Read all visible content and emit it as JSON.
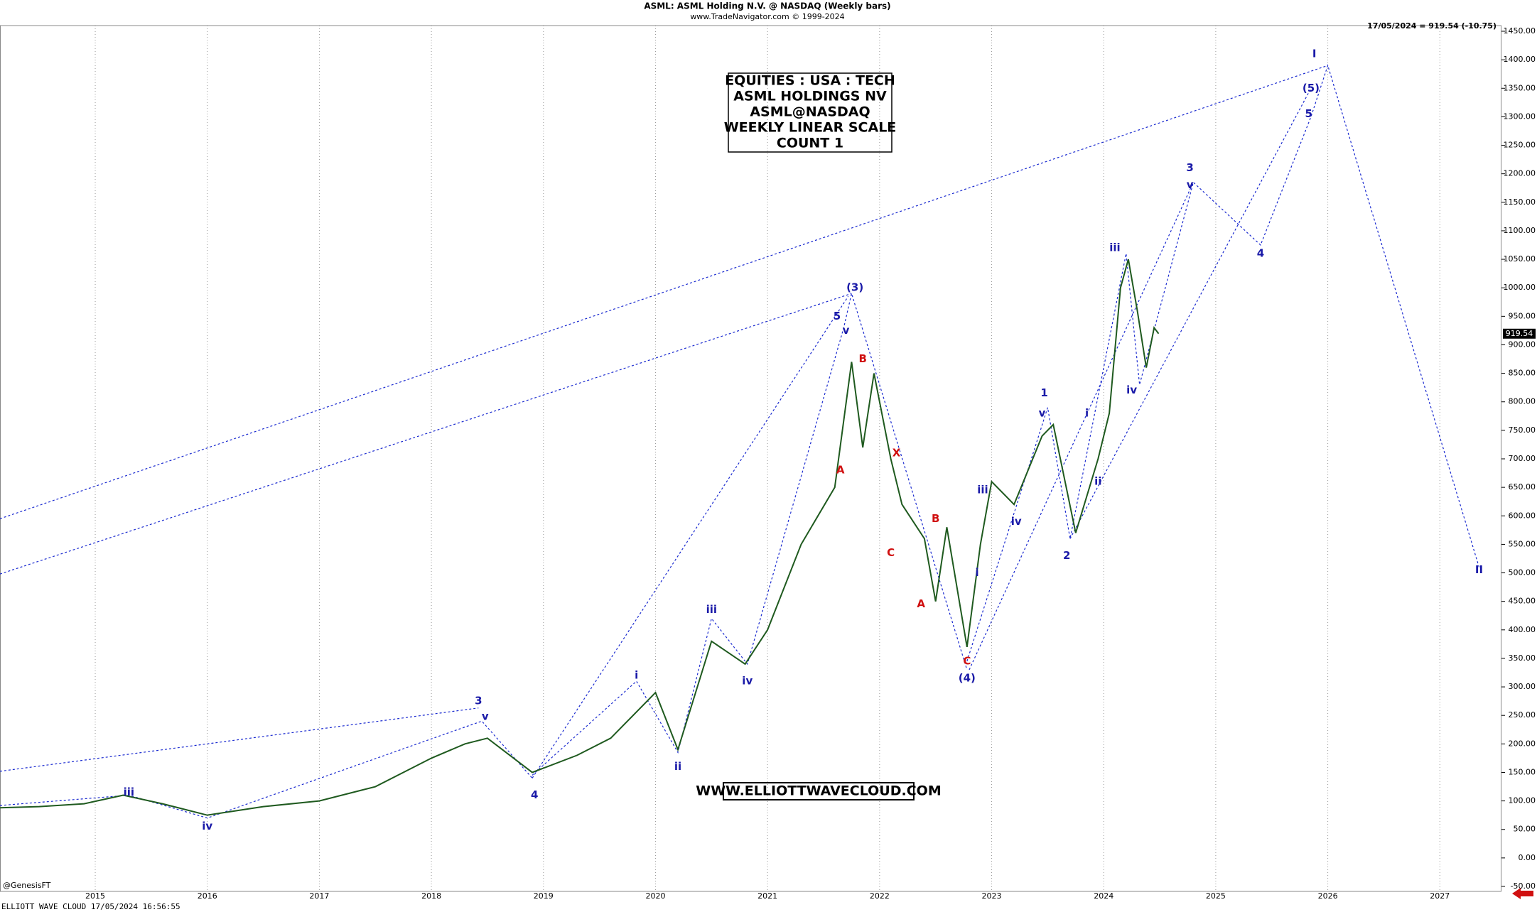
{
  "chart_data": {
    "type": "line",
    "title": "ASML:  ASML Holding N.V. @ NASDAQ  (Weekly bars)",
    "subtitle": "www.TradeNavigator.com © 1999-2024",
    "last_quote": "17/05/2024 = 919.54 (-10.75)",
    "last_price": 919.54,
    "last_price_label": "919.54",
    "info_box": [
      "EQUITIES : USA : TECH",
      "ASML HOLDINGS NV",
      "ASML@NASDAQ",
      "WEEKLY LINEAR SCALE",
      "COUNT 1"
    ],
    "website": "WWW.ELLIOTTWAVECLOUD.COM",
    "footer": "ELLIOTT WAVE CLOUD   17/05/2024 16:56:55",
    "credit": "@GenesisFT",
    "xlim": [
      2014.15,
      2027.55
    ],
    "xticks": [
      2015,
      2016,
      2017,
      2018,
      2019,
      2020,
      2021,
      2022,
      2023,
      2024,
      2025,
      2026,
      2027
    ],
    "ylim": [
      -50,
      1450
    ],
    "yticks": [
      {
        "value": -50,
        "label": "-50.00"
      },
      {
        "value": 0,
        "label": "0.00"
      },
      {
        "value": 50,
        "label": "50.00"
      },
      {
        "value": 100,
        "label": "100.00"
      },
      {
        "value": 150,
        "label": "150.00"
      },
      {
        "value": 200,
        "label": "200.00"
      },
      {
        "value": 250,
        "label": "250.00"
      },
      {
        "value": 300,
        "label": "300.00"
      },
      {
        "value": 350,
        "label": "350.00"
      },
      {
        "value": 400,
        "label": "400.00"
      },
      {
        "value": 450,
        "label": "450.00"
      },
      {
        "value": 500,
        "label": "500.00"
      },
      {
        "value": 550,
        "label": "550.00"
      },
      {
        "value": 600,
        "label": "600.00"
      },
      {
        "value": 650,
        "label": "650.00"
      },
      {
        "value": 700,
        "label": "700.00"
      },
      {
        "value": 750,
        "label": "750.00"
      },
      {
        "value": 800,
        "label": "800.00"
      },
      {
        "value": 850,
        "label": "850.00"
      },
      {
        "value": 900,
        "label": "900.00"
      },
      {
        "value": 950,
        "label": "950.00"
      },
      {
        "value": 1000,
        "label": "1000.00"
      },
      {
        "value": 1050,
        "label": "1050.00"
      },
      {
        "value": 1100,
        "label": "1100.00"
      },
      {
        "value": 1150,
        "label": "1150.00"
      },
      {
        "value": 1200,
        "label": "1200.00"
      },
      {
        "value": 1250,
        "label": "1250.00"
      },
      {
        "value": 1300,
        "label": "1300.00"
      },
      {
        "value": 1350,
        "label": "1350.00"
      },
      {
        "value": 1400,
        "label": "1400.00"
      },
      {
        "value": 1450,
        "label": "1450.00"
      }
    ],
    "grid": true,
    "x": [
      2014.15,
      2014.5,
      2014.9,
      2015.25,
      2015.6,
      2016.0,
      2016.5,
      2017.0,
      2017.5,
      2018.0,
      2018.3,
      2018.5,
      2018.9,
      2019.3,
      2019.6,
      2020.0,
      2020.2,
      2020.5,
      2020.8,
      2021.0,
      2021.3,
      2021.6,
      2021.75,
      2021.85,
      2021.95,
      2022.1,
      2022.2,
      2022.4,
      2022.5,
      2022.6,
      2022.78,
      2022.9,
      2023.0,
      2023.2,
      2023.45,
      2023.55,
      2023.75,
      2023.95,
      2024.05,
      2024.15,
      2024.22,
      2024.3,
      2024.38,
      2024.45,
      2024.49
    ],
    "series": [
      {
        "color": "#1f5a1f",
        "values": [
          88,
          90,
          95,
          110,
          95,
          75,
          90,
          100,
          125,
          175,
          200,
          210,
          150,
          180,
          210,
          290,
          190,
          380,
          340,
          400,
          550,
          650,
          870,
          720,
          850,
          700,
          620,
          560,
          450,
          580,
          370,
          550,
          660,
          620,
          740,
          760,
          570,
          700,
          780,
          1000,
          1050,
          960,
          860,
          930,
          919.54
        ]
      }
    ],
    "wave_lines": [
      {
        "color": "#1a2ad0",
        "x": [
          2014.15,
          2026.0
        ],
        "y": [
          595,
          1390
        ]
      },
      {
        "color": "#1a2ad0",
        "x": [
          2014.15,
          2021.75
        ],
        "y": [
          498,
          990
        ]
      },
      {
        "color": "#1a2ad0",
        "x": [
          2014.15,
          2018.42
        ],
        "y": [
          152,
          263
        ]
      },
      {
        "color": "#1a2ad0",
        "x": [
          2014.15,
          2015.3,
          2016.0,
          2018.45,
          2018.9
        ],
        "y": [
          92,
          110,
          70,
          240,
          140
        ]
      },
      {
        "color": "#1a2ad0",
        "x": [
          2018.9,
          2019.83,
          2020.2,
          2020.5,
          2020.82,
          2021.68,
          2021.75,
          2022.78
        ],
        "y": [
          145,
          310,
          185,
          420,
          340,
          930,
          990,
          330
        ]
      },
      {
        "color": "#1a2ad0",
        "x": [
          2022.78,
          2023.5,
          2023.7,
          2024.2,
          2024.32,
          2024.8,
          2025.4,
          2025.85,
          2026.0,
          2027.35
        ],
        "y": [
          345,
          790,
          560,
          1060,
          830,
          1185,
          1075,
          1300,
          1390,
          510
        ]
      },
      {
        "color": "#1a2ad0",
        "x": [
          2018.9,
          2021.72
        ],
        "y": [
          140,
          985
        ]
      },
      {
        "color": "#1a2ad0",
        "x": [
          2022.8,
          2024.8
        ],
        "y": [
          330,
          1185
        ]
      },
      {
        "color": "#1a2ad0",
        "x": [
          2023.7,
          2025.85
        ],
        "y": [
          560,
          1350
        ]
      }
    ],
    "annotations": [
      {
        "text": "iii",
        "x": 2015.3,
        "y": 115,
        "color": "#1a1aa8"
      },
      {
        "text": "iv",
        "x": 2016.0,
        "y": 55,
        "color": "#1a1aa8"
      },
      {
        "text": "3",
        "x": 2018.42,
        "y": 275,
        "color": "#1a1aa8"
      },
      {
        "text": "v",
        "x": 2018.48,
        "y": 248,
        "color": "#1a1aa8"
      },
      {
        "text": "4",
        "x": 2018.92,
        "y": 110,
        "color": "#1a1aa8"
      },
      {
        "text": "i",
        "x": 2019.83,
        "y": 320,
        "color": "#1a1aa8"
      },
      {
        "text": "ii",
        "x": 2020.2,
        "y": 160,
        "color": "#1a1aa8"
      },
      {
        "text": "iii",
        "x": 2020.5,
        "y": 435,
        "color": "#1a1aa8"
      },
      {
        "text": "iv",
        "x": 2020.82,
        "y": 310,
        "color": "#1a1aa8"
      },
      {
        "text": "5",
        "x": 2021.62,
        "y": 950,
        "color": "#1a1aa8"
      },
      {
        "text": "v",
        "x": 2021.7,
        "y": 925,
        "color": "#1a1aa8"
      },
      {
        "text": "(3)",
        "x": 2021.78,
        "y": 1000,
        "color": "#1a1aa8"
      },
      {
        "text": "A",
        "x": 2021.65,
        "y": 680,
        "color": "#d01010"
      },
      {
        "text": "B",
        "x": 2021.85,
        "y": 875,
        "color": "#d01010"
      },
      {
        "text": "C",
        "x": 2022.1,
        "y": 535,
        "color": "#d01010"
      },
      {
        "text": "X",
        "x": 2022.15,
        "y": 710,
        "color": "#d01010"
      },
      {
        "text": "A",
        "x": 2022.37,
        "y": 445,
        "color": "#d01010"
      },
      {
        "text": "B",
        "x": 2022.5,
        "y": 595,
        "color": "#d01010"
      },
      {
        "text": "C",
        "x": 2022.78,
        "y": 345,
        "color": "#d01010"
      },
      {
        "text": "(4)",
        "x": 2022.78,
        "y": 315,
        "color": "#1a1aa8"
      },
      {
        "text": "i",
        "x": 2022.87,
        "y": 500,
        "color": "#1a1aa8"
      },
      {
        "text": "iii",
        "x": 2022.92,
        "y": 645,
        "color": "#1a1aa8"
      },
      {
        "text": "iv",
        "x": 2023.22,
        "y": 590,
        "color": "#1a1aa8"
      },
      {
        "text": "1",
        "x": 2023.47,
        "y": 815,
        "color": "#1a1aa8"
      },
      {
        "text": "v",
        "x": 2023.45,
        "y": 780,
        "color": "#1a1aa8"
      },
      {
        "text": "2",
        "x": 2023.67,
        "y": 530,
        "color": "#1a1aa8"
      },
      {
        "text": "i",
        "x": 2023.85,
        "y": 780,
        "color": "#1a1aa8"
      },
      {
        "text": "ii",
        "x": 2023.95,
        "y": 660,
        "color": "#1a1aa8"
      },
      {
        "text": "iii",
        "x": 2024.1,
        "y": 1070,
        "color": "#1a1aa8"
      },
      {
        "text": "iv",
        "x": 2024.25,
        "y": 820,
        "color": "#1a1aa8"
      },
      {
        "text": "3",
        "x": 2024.77,
        "y": 1210,
        "color": "#1a1aa8"
      },
      {
        "text": "v",
        "x": 2024.77,
        "y": 1180,
        "color": "#1a1aa8"
      },
      {
        "text": "4",
        "x": 2025.4,
        "y": 1060,
        "color": "#1a1aa8"
      },
      {
        "text": "5",
        "x": 2025.83,
        "y": 1305,
        "color": "#1a1aa8"
      },
      {
        "text": "(5)",
        "x": 2025.85,
        "y": 1350,
        "color": "#1a1aa8"
      },
      {
        "text": "I",
        "x": 2025.88,
        "y": 1410,
        "color": "#1a1aa8"
      },
      {
        "text": "II",
        "x": 2027.35,
        "y": 505,
        "color": "#1a1aa8"
      }
    ]
  }
}
